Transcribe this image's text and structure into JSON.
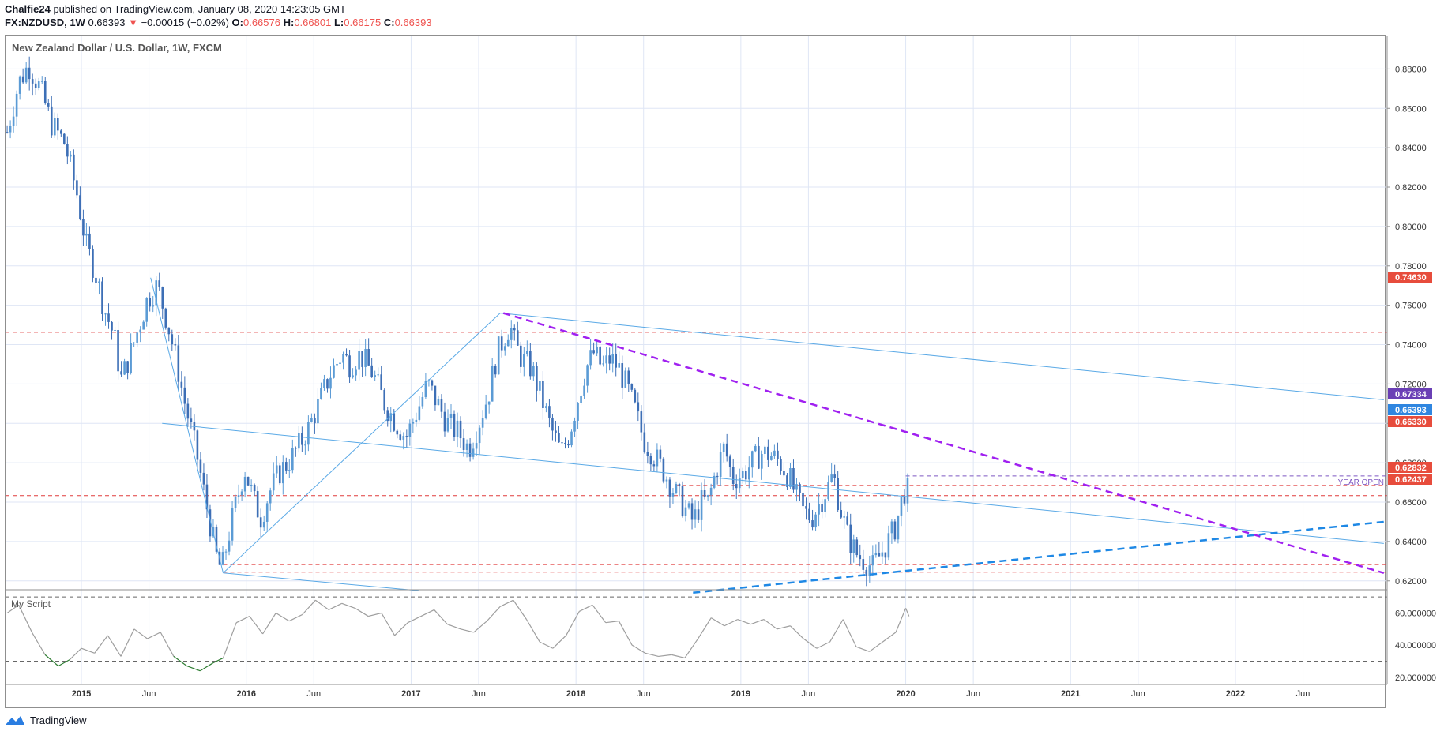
{
  "header": {
    "author": "Chalfie24",
    "published_text": "published on TradingView.com, January 08, 2020 14:23:05 GMT",
    "symbol": "FX:NZDUSD, 1W",
    "last": "0.66393",
    "change": "−0.00015 (−0.02%)",
    "o_label": "O:",
    "o": "0.66576",
    "h_label": "H:",
    "h": "0.66801",
    "l_label": "L:",
    "l": "0.66175",
    "c_label": "C:",
    "c": "0.66393"
  },
  "footer": {
    "brand": "TradingView"
  },
  "colors": {
    "up_candle": "#5b9bd5",
    "down_candle": "#3d6fb6",
    "trend_line": "#5aa9e6",
    "purple_dash": "#a020f0",
    "blue_dash": "#1e88e5",
    "red_dash": "#e03b3b",
    "rsi_line": "#9e9e9e",
    "rsi_low": "#2e7d32",
    "grid": "#dfe6f5"
  },
  "chart_data": [
    {
      "type": "candlestick",
      "title": "New Zealand Dollar / U.S. Dollar, 1W, FXCM",
      "x_ticks": [
        "2015",
        "Jun",
        "2016",
        "Jun",
        "2017",
        "Jun",
        "2018",
        "Jun",
        "2019",
        "Jun",
        "2020",
        "Jun",
        "2021",
        "Jun",
        "2022",
        "Jun"
      ],
      "y_ticks": [
        "0.88000",
        "0.86000",
        "0.84000",
        "0.82000",
        "0.80000",
        "0.78000",
        "0.76000",
        "0.74000",
        "0.72000",
        "0.70000",
        "0.68000",
        "0.66000",
        "0.64000",
        "0.62000"
      ],
      "ylim": [
        0.6155,
        0.897
      ],
      "price_path": [
        [
          2014.55,
          0.848
        ],
        [
          2014.62,
          0.873
        ],
        [
          2014.68,
          0.882
        ],
        [
          2014.75,
          0.87
        ],
        [
          2014.82,
          0.852
        ],
        [
          2014.9,
          0.842
        ],
        [
          2014.97,
          0.818
        ],
        [
          2015.03,
          0.79
        ],
        [
          2015.08,
          0.778
        ],
        [
          2015.14,
          0.758
        ],
        [
          2015.2,
          0.744
        ],
        [
          2015.24,
          0.722
        ],
        [
          2015.3,
          0.736
        ],
        [
          2015.36,
          0.752
        ],
        [
          2015.4,
          0.763
        ],
        [
          2015.46,
          0.77
        ],
        [
          2015.52,
          0.752
        ],
        [
          2015.58,
          0.73
        ],
        [
          2015.62,
          0.713
        ],
        [
          2015.67,
          0.695
        ],
        [
          2015.71,
          0.68
        ],
        [
          2015.75,
          0.662
        ],
        [
          2015.79,
          0.645
        ],
        [
          2015.82,
          0.632
        ],
        [
          2015.85,
          0.625
        ],
        [
          2015.89,
          0.642
        ],
        [
          2015.94,
          0.66
        ],
        [
          2015.99,
          0.677
        ],
        [
          2016.05,
          0.66
        ],
        [
          2016.09,
          0.652
        ],
        [
          2016.14,
          0.665
        ],
        [
          2016.2,
          0.675
        ],
        [
          2016.27,
          0.682
        ],
        [
          2016.33,
          0.69
        ],
        [
          2016.38,
          0.698
        ],
        [
          2016.44,
          0.71
        ],
        [
          2016.51,
          0.725
        ],
        [
          2016.58,
          0.735
        ],
        [
          2016.63,
          0.73
        ],
        [
          2016.69,
          0.735
        ],
        [
          2016.77,
          0.725
        ],
        [
          2016.84,
          0.71
        ],
        [
          2016.91,
          0.7
        ],
        [
          2016.97,
          0.693
        ],
        [
          2017.03,
          0.705
        ],
        [
          2017.1,
          0.72
        ],
        [
          2017.16,
          0.71
        ],
        [
          2017.22,
          0.7
        ],
        [
          2017.29,
          0.695
        ],
        [
          2017.35,
          0.687
        ],
        [
          2017.41,
          0.7
        ],
        [
          2017.47,
          0.715
        ],
        [
          2017.52,
          0.735
        ],
        [
          2017.56,
          0.743
        ],
        [
          2017.6,
          0.75
        ],
        [
          2017.63,
          0.74
        ],
        [
          2017.67,
          0.733
        ],
        [
          2017.73,
          0.728
        ],
        [
          2017.79,
          0.713
        ],
        [
          2017.85,
          0.697
        ],
        [
          2017.91,
          0.685
        ],
        [
          2017.96,
          0.695
        ],
        [
          2018.01,
          0.712
        ],
        [
          2018.06,
          0.728
        ],
        [
          2018.11,
          0.736
        ],
        [
          2018.16,
          0.728
        ],
        [
          2018.21,
          0.733
        ],
        [
          2018.26,
          0.728
        ],
        [
          2018.31,
          0.718
        ],
        [
          2018.36,
          0.706
        ],
        [
          2018.41,
          0.692
        ],
        [
          2018.47,
          0.684
        ],
        [
          2018.53,
          0.676
        ],
        [
          2018.6,
          0.665
        ],
        [
          2018.66,
          0.657
        ],
        [
          2018.71,
          0.65
        ],
        [
          2018.76,
          0.66
        ],
        [
          2018.8,
          0.66
        ],
        [
          2018.85,
          0.676
        ],
        [
          2018.9,
          0.688
        ],
        [
          2018.95,
          0.672
        ],
        [
          2019.01,
          0.674
        ],
        [
          2019.06,
          0.679
        ],
        [
          2019.12,
          0.685
        ],
        [
          2019.18,
          0.684
        ],
        [
          2019.24,
          0.68
        ],
        [
          2019.29,
          0.673
        ],
        [
          2019.34,
          0.662
        ],
        [
          2019.38,
          0.655
        ],
        [
          2019.43,
          0.652
        ],
        [
          2019.48,
          0.66
        ],
        [
          2019.53,
          0.668
        ],
        [
          2019.56,
          0.674
        ],
        [
          2019.6,
          0.658
        ],
        [
          2019.65,
          0.642
        ],
        [
          2019.7,
          0.634
        ],
        [
          2019.75,
          0.63
        ],
        [
          2019.8,
          0.627
        ],
        [
          2019.85,
          0.634
        ],
        [
          2019.9,
          0.641
        ],
        [
          2019.94,
          0.648
        ],
        [
          2019.97,
          0.659
        ],
        [
          2020.0,
          0.668
        ],
        [
          2020.02,
          0.664
        ]
      ],
      "annotations": {
        "year_open_label": "YEAR OPEN",
        "price_tags": [
          {
            "value": "0.74630",
            "kind": "red"
          },
          {
            "value": "0.67334",
            "kind": "purple"
          },
          {
            "value": "0.66393",
            "kind": "blue"
          },
          {
            "value": "0.66330",
            "kind": "red"
          },
          {
            "value": "0.62832",
            "kind": "red"
          },
          {
            "value": "0.62437",
            "kind": "red"
          }
        ],
        "horizontal_levels": [
          0.7463,
          0.6633,
          0.6283,
          0.6244,
          0.6733,
          0.6685
        ],
        "trend_lines": [
          {
            "style": "solid",
            "from": [
              2015.86,
              0.624
            ],
            "to": [
              2017.54,
              0.756
            ]
          },
          {
            "style": "solid",
            "from": [
              2017.54,
              0.756
            ],
            "to": [
              2022.9,
              0.712
            ]
          },
          {
            "style": "solid",
            "from": [
              2015.42,
              0.774
            ],
            "to": [
              2015.86,
              0.624
            ]
          },
          {
            "style": "solid",
            "from": [
              2015.49,
              0.7
            ],
            "to": [
              2022.9,
              0.639
            ]
          },
          {
            "style": "solid",
            "from": [
              2015.86,
              0.624
            ],
            "to": [
              2017.05,
              0.615
            ]
          },
          {
            "style": "purple-dash",
            "from": [
              2017.56,
              0.756
            ],
            "to": [
              2022.9,
              0.624
            ]
          },
          {
            "style": "blue-dash",
            "from": [
              2018.71,
              0.614
            ],
            "to": [
              2022.9,
              0.65
            ]
          }
        ]
      }
    },
    {
      "type": "line",
      "title": "My Script",
      "y_ticks": [
        "60.000000",
        "40.000000",
        "20.000000"
      ],
      "ylim": [
        16,
        74
      ],
      "levels": [
        70,
        30
      ],
      "x": [
        2014.55,
        2014.62,
        2014.7,
        2014.78,
        2014.86,
        2014.93,
        2015.0,
        2015.08,
        2015.16,
        2015.24,
        2015.32,
        2015.4,
        2015.48,
        2015.56,
        2015.64,
        2015.72,
        2015.8,
        2015.86,
        2015.94,
        2016.02,
        2016.1,
        2016.18,
        2016.26,
        2016.34,
        2016.42,
        2016.5,
        2016.58,
        2016.66,
        2016.74,
        2016.82,
        2016.9,
        2016.98,
        2017.06,
        2017.14,
        2017.22,
        2017.3,
        2017.38,
        2017.46,
        2017.54,
        2017.62,
        2017.7,
        2017.78,
        2017.86,
        2017.94,
        2018.02,
        2018.1,
        2018.18,
        2018.26,
        2018.34,
        2018.42,
        2018.5,
        2018.58,
        2018.66,
        2018.74,
        2018.82,
        2018.9,
        2018.98,
        2019.06,
        2019.14,
        2019.22,
        2019.3,
        2019.38,
        2019.46,
        2019.54,
        2019.62,
        2019.7,
        2019.78,
        2019.86,
        2019.94,
        2020.0,
        2020.02
      ],
      "values": [
        60,
        65,
        48,
        34,
        27,
        31,
        38,
        35,
        46,
        33,
        50,
        44,
        48,
        33,
        27,
        24,
        29,
        32,
        54,
        58,
        47,
        60,
        55,
        59,
        68,
        62,
        66,
        63,
        58,
        60,
        46,
        54,
        58,
        62,
        53,
        50,
        48,
        55,
        64,
        68,
        56,
        42,
        38,
        46,
        61,
        65,
        54,
        55,
        40,
        35,
        33,
        34,
        32,
        44,
        57,
        52,
        56,
        53,
        56,
        50,
        52,
        44,
        38,
        42,
        56,
        39,
        36,
        42,
        48,
        63,
        58
      ]
    }
  ]
}
